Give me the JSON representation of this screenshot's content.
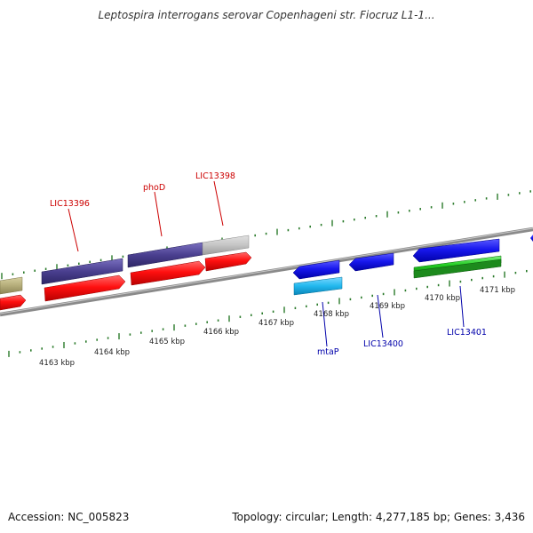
{
  "title": "Leptospira interrogans serovar Copenhageni str. Fiocruz L1-1...",
  "footer": {
    "accession": "Accession: NC_005823",
    "stats": "Topology: circular; Length: 4,277,185 bp; Genes: 3,436"
  },
  "colors": {
    "forward_cds": "#ff0000",
    "reverse_cds": "#1a1aee",
    "indigo": "#4a3f8f",
    "khaki": "#b5ad7a",
    "grey": "#c0c0c0",
    "cyan": "#22b8ee",
    "green": "#22cc22",
    "tick": "#2a7a2a",
    "backbone": "#8a8a8a"
  },
  "kbp_labels": [
    "4163 kbp",
    "4164 kbp",
    "4165 kbp",
    "4166 kbp",
    "4167 kbp",
    "4168 kbp",
    "4169 kbp",
    "4170 kbp",
    "4171 kbp"
  ],
  "gene_labels": {
    "top": [
      "LIC13396",
      "phoD",
      "LIC13398"
    ],
    "bottom": [
      "mtaP",
      "LIC13400",
      "LIC13401"
    ]
  }
}
